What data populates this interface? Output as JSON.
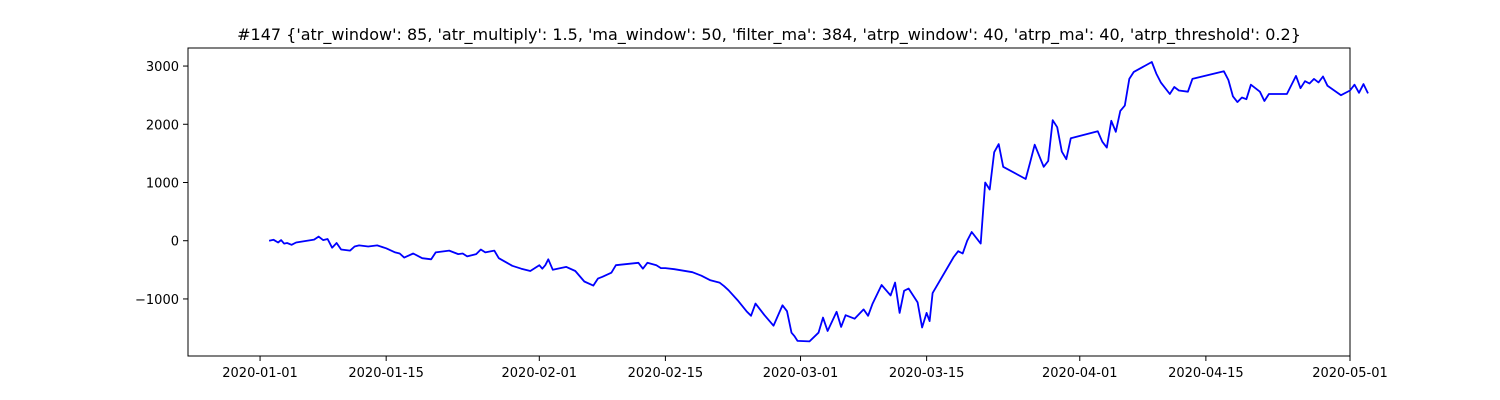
{
  "chart_data": {
    "type": "line",
    "title": "#147 {'atr_window': 85, 'atr_multiply': 1.5, 'ma_window': 50, 'filter_ma': 384, 'atrp_window': 40, 'atrp_ma': 40, 'atrp_threshold': 0.2}",
    "xlabel": "",
    "ylabel": "",
    "x_scale": "date",
    "xlim": [
      "2019-12-24",
      "2020-05-01"
    ],
    "ylim": [
      -1980,
      3310
    ],
    "x_ticks": [
      "2020-01-01",
      "2020-01-15",
      "2020-02-01",
      "2020-02-15",
      "2020-03-01",
      "2020-03-15",
      "2020-04-01",
      "2020-04-15",
      "2020-05-01"
    ],
    "y_ticks": [
      -1000,
      0,
      1000,
      2000,
      3000
    ],
    "y_tick_labels": [
      "−1000",
      "0",
      "1000",
      "2000",
      "3000"
    ],
    "grid": false,
    "line_color": "#0000ff",
    "series": [
      {
        "points": [
          [
            "2020-01-02",
            0
          ],
          [
            "2020-01-02",
            15
          ],
          [
            "2020-01-03",
            -30
          ],
          [
            "2020-01-03",
            10
          ],
          [
            "2020-01-03",
            -50
          ],
          [
            "2020-01-04",
            -40
          ],
          [
            "2020-01-04",
            -70
          ],
          [
            "2020-01-05",
            -30
          ],
          [
            "2020-01-07",
            20
          ],
          [
            "2020-01-07",
            70
          ],
          [
            "2020-01-08",
            10
          ],
          [
            "2020-01-08",
            30
          ],
          [
            "2020-01-09",
            -120
          ],
          [
            "2020-01-09",
            -40
          ],
          [
            "2020-01-10",
            -150
          ],
          [
            "2020-01-11",
            -170
          ],
          [
            "2020-01-11",
            -100
          ],
          [
            "2020-01-12",
            -80
          ],
          [
            "2020-01-13",
            -100
          ],
          [
            "2020-01-14",
            -80
          ],
          [
            "2020-01-15",
            -130
          ],
          [
            "2020-01-16",
            -200
          ],
          [
            "2020-01-16",
            -220
          ],
          [
            "2020-01-17",
            -290
          ],
          [
            "2020-01-18",
            -220
          ],
          [
            "2020-01-19",
            -300
          ],
          [
            "2020-01-20",
            -320
          ],
          [
            "2020-01-20",
            -200
          ],
          [
            "2020-01-22",
            -170
          ],
          [
            "2020-01-23",
            -230
          ],
          [
            "2020-01-23",
            -220
          ],
          [
            "2020-01-24",
            -270
          ],
          [
            "2020-01-25",
            -230
          ],
          [
            "2020-01-25",
            -150
          ],
          [
            "2020-01-26",
            -200
          ],
          [
            "2020-01-27",
            -170
          ],
          [
            "2020-01-27",
            -300
          ],
          [
            "2020-01-29",
            -430
          ],
          [
            "2020-01-30",
            -480
          ],
          [
            "2020-01-31",
            -520
          ],
          [
            "2020-02-01",
            -420
          ],
          [
            "2020-02-01",
            -480
          ],
          [
            "2020-02-01",
            -420
          ],
          [
            "2020-02-02",
            -320
          ],
          [
            "2020-02-02",
            -500
          ],
          [
            "2020-02-04",
            -450
          ],
          [
            "2020-02-05",
            -520
          ],
          [
            "2020-02-06",
            -700
          ],
          [
            "2020-02-07",
            -770
          ],
          [
            "2020-02-07",
            -650
          ],
          [
            "2020-02-08",
            -620
          ],
          [
            "2020-02-09",
            -550
          ],
          [
            "2020-02-09",
            -420
          ],
          [
            "2020-02-12",
            -380
          ],
          [
            "2020-02-12",
            -480
          ],
          [
            "2020-02-13",
            -380
          ],
          [
            "2020-02-14",
            -420
          ],
          [
            "2020-02-14",
            -470
          ],
          [
            "2020-02-15",
            -470
          ],
          [
            "2020-02-16",
            -490
          ],
          [
            "2020-02-18",
            -540
          ],
          [
            "2020-02-19",
            -600
          ],
          [
            "2020-02-20",
            -680
          ],
          [
            "2020-02-21",
            -720
          ],
          [
            "2020-02-21",
            -780
          ],
          [
            "2020-02-22",
            -850
          ],
          [
            "2020-02-23",
            -1020
          ],
          [
            "2020-02-24",
            -1210
          ],
          [
            "2020-02-24",
            -1290
          ],
          [
            "2020-02-25",
            -1080
          ],
          [
            "2020-02-26",
            -1280
          ],
          [
            "2020-02-27",
            -1460
          ],
          [
            "2020-02-28",
            -1110
          ],
          [
            "2020-02-28",
            -1210
          ],
          [
            "2020-02-29",
            -1580
          ],
          [
            "2020-02-29",
            -1640
          ],
          [
            "2020-02-29",
            -1720
          ],
          [
            "2020-03-02",
            -1730
          ],
          [
            "2020-03-03",
            -1580
          ],
          [
            "2020-03-03",
            -1320
          ],
          [
            "2020-03-04",
            -1550
          ],
          [
            "2020-03-05",
            -1220
          ],
          [
            "2020-03-05",
            -1480
          ],
          [
            "2020-03-06",
            -1280
          ],
          [
            "2020-03-07",
            -1340
          ],
          [
            "2020-03-08",
            -1180
          ],
          [
            "2020-03-08",
            -1290
          ],
          [
            "2020-03-09",
            -1080
          ],
          [
            "2020-03-10",
            -760
          ],
          [
            "2020-03-11",
            -940
          ],
          [
            "2020-03-11",
            -720
          ],
          [
            "2020-03-12",
            -1240
          ],
          [
            "2020-03-12",
            -860
          ],
          [
            "2020-03-13",
            -820
          ],
          [
            "2020-03-14",
            -1060
          ],
          [
            "2020-03-14",
            -1490
          ],
          [
            "2020-03-15",
            -1240
          ],
          [
            "2020-03-15",
            -1380
          ],
          [
            "2020-03-15",
            -900
          ],
          [
            "2020-03-18",
            -280
          ],
          [
            "2020-03-18",
            -180
          ],
          [
            "2020-03-19",
            -220
          ],
          [
            "2020-03-19",
            0
          ],
          [
            "2020-03-20",
            150
          ],
          [
            "2020-03-21",
            -50
          ],
          [
            "2020-03-21",
            1000
          ],
          [
            "2020-03-22",
            880
          ],
          [
            "2020-03-22",
            1520
          ],
          [
            "2020-03-23",
            1660
          ],
          [
            "2020-03-23",
            1270
          ],
          [
            "2020-03-26",
            1060
          ],
          [
            "2020-03-26",
            1350
          ],
          [
            "2020-03-27",
            1650
          ],
          [
            "2020-03-28",
            1270
          ],
          [
            "2020-03-28",
            1370
          ],
          [
            "2020-03-29",
            2070
          ],
          [
            "2020-03-29",
            1950
          ],
          [
            "2020-03-30",
            1530
          ],
          [
            "2020-03-30",
            1400
          ],
          [
            "2020-03-31",
            1760
          ],
          [
            "2020-04-03",
            1880
          ],
          [
            "2020-04-03",
            1700
          ],
          [
            "2020-04-04",
            1600
          ],
          [
            "2020-04-04",
            2060
          ],
          [
            "2020-04-05",
            1870
          ],
          [
            "2020-04-05",
            2230
          ],
          [
            "2020-04-06",
            2320
          ],
          [
            "2020-04-06",
            2780
          ],
          [
            "2020-04-07",
            2900
          ],
          [
            "2020-04-09",
            3070
          ],
          [
            "2020-04-09",
            2870
          ],
          [
            "2020-04-10",
            2720
          ],
          [
            "2020-04-11",
            2520
          ],
          [
            "2020-04-11",
            2640
          ],
          [
            "2020-04-12",
            2580
          ],
          [
            "2020-04-13",
            2560
          ],
          [
            "2020-04-13",
            2780
          ],
          [
            "2020-04-17",
            2910
          ],
          [
            "2020-04-17",
            2760
          ],
          [
            "2020-04-18",
            2480
          ],
          [
            "2020-04-18",
            2380
          ],
          [
            "2020-04-19",
            2460
          ],
          [
            "2020-04-19",
            2430
          ],
          [
            "2020-04-20",
            2680
          ],
          [
            "2020-04-21",
            2560
          ],
          [
            "2020-04-21",
            2400
          ],
          [
            "2020-04-22",
            2520
          ],
          [
            "2020-04-24",
            2520
          ],
          [
            "2020-04-25",
            2830
          ],
          [
            "2020-04-25",
            2620
          ],
          [
            "2020-04-26",
            2740
          ],
          [
            "2020-04-26",
            2700
          ],
          [
            "2020-04-27",
            2780
          ],
          [
            "2020-04-27",
            2720
          ],
          [
            "2020-04-28",
            2820
          ],
          [
            "2020-04-28",
            2660
          ],
          [
            "2020-04-30",
            2500
          ],
          [
            "2020-05-01",
            2580
          ],
          [
            "2020-05-01",
            2680
          ],
          [
            "2020-05-02",
            2540
          ],
          [
            "2020-05-02",
            2690
          ],
          [
            "2020-05-03",
            2530
          ]
        ]
      }
    ]
  }
}
